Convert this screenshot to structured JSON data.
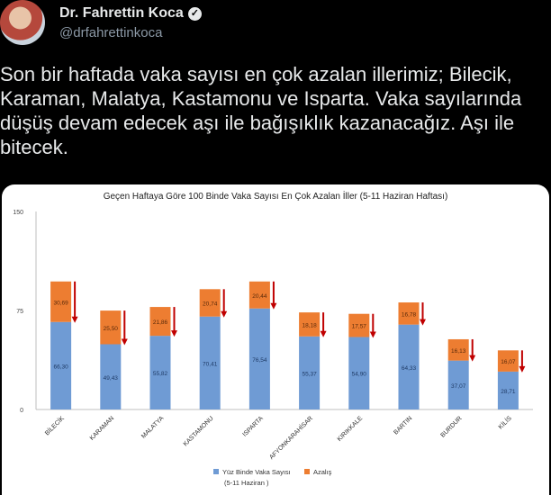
{
  "author": {
    "name": "Dr. Fahrettin Koca",
    "handle": "@drfahrettinkoca",
    "verified_icon": "verified-badge-icon"
  },
  "tweet_text": "Son bir haftada vaka sayısı en çok azalan illerimiz; Bilecik, Karaman, Malatya, Kastamonu ve Isparta. Vaka sayılarında düşüş devam edecek aşı ile bağışıklık kazanacağız. Aşı ile bitecek.",
  "chart_data": {
    "type": "bar",
    "stacked": true,
    "title": "Geçen Haftaya Göre 100 Binde Vaka Sayısı En Çok Azalan İller (5-11 Haziran Haftası)",
    "categories": [
      "BİLECİK",
      "KARAMAN",
      "MALATYA",
      "KASTAMONU",
      "ISPARTA",
      "AFYONKARAHİSAR",
      "KIRIKKALE",
      "BARTIN",
      "BURDUR",
      "KİLİS"
    ],
    "series": [
      {
        "name": "Yüz Binde Vaka Sayısı",
        "color": "#6f9bd4",
        "values": [
          66.3,
          49.43,
          55.82,
          70.41,
          76.54,
          55.37,
          54.9,
          64.33,
          37.07,
          28.71
        ],
        "labels": [
          "66,30",
          "49,43",
          "55,82",
          "70,41",
          "76,54",
          "55,37",
          "54,90",
          "64,33",
          "37,07",
          "28,71"
        ]
      },
      {
        "name": "Azalış",
        "color": "#ed7d31",
        "values": [
          30.69,
          25.5,
          21.86,
          20.74,
          20.44,
          18.18,
          17.57,
          16.78,
          16.13,
          16.07
        ],
        "labels": [
          "30,69",
          "25,50",
          "21,86",
          "20,74",
          "20,44",
          "18,18",
          "17,57",
          "16,78",
          "16,13",
          "16,07"
        ]
      }
    ],
    "legend_note": "(5-11 Haziran )",
    "ylim": [
      0,
      150
    ],
    "yticks": [
      "0",
      "75",
      "150"
    ],
    "grid": false,
    "legend_position": "bottom",
    "arrow_color": "#c00000"
  }
}
